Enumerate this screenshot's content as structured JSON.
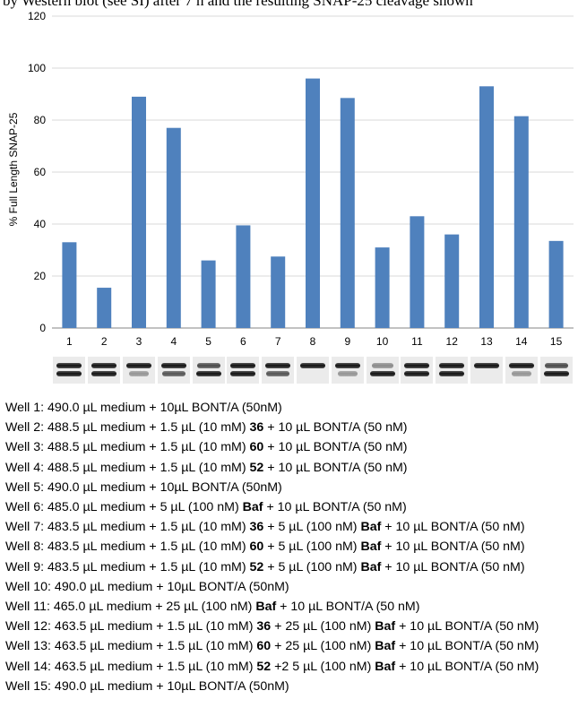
{
  "header_text": "by Western blot (see SI) after 7 h and the resulting SNAP-25 cleavage shown",
  "chart_data": {
    "type": "bar",
    "title": "",
    "xlabel": "",
    "ylabel": "% Full Length SNAP-25",
    "ylim": [
      0,
      120
    ],
    "yticks": [
      0,
      20,
      40,
      60,
      80,
      100,
      120
    ],
    "grid": true,
    "legend": "none",
    "bar_color": "#4f81bd",
    "categories": [
      "1",
      "2",
      "3",
      "4",
      "5",
      "6",
      "7",
      "8",
      "9",
      "10",
      "11",
      "12",
      "13",
      "14",
      "15"
    ],
    "values": [
      33,
      15.5,
      89,
      77,
      26,
      39.5,
      27.5,
      96,
      88.5,
      31,
      43,
      36,
      93,
      81.5,
      33.5
    ]
  },
  "blots": [
    {
      "well": "1",
      "bands": [
        "upper-strong",
        "lower-strong"
      ]
    },
    {
      "well": "2",
      "bands": [
        "upper-strong",
        "lower-strong"
      ]
    },
    {
      "well": "3",
      "bands": [
        "upper-strong",
        "lower-faint"
      ]
    },
    {
      "well": "4",
      "bands": [
        "upper-strong",
        "lower-medium"
      ]
    },
    {
      "well": "5",
      "bands": [
        "upper-medium",
        "lower-strong"
      ]
    },
    {
      "well": "6",
      "bands": [
        "upper-strong",
        "lower-strong"
      ]
    },
    {
      "well": "7",
      "bands": [
        "upper-strong",
        "lower-medium"
      ]
    },
    {
      "well": "8",
      "bands": [
        "upper-strong"
      ]
    },
    {
      "well": "9",
      "bands": [
        "upper-strong",
        "lower-faint"
      ]
    },
    {
      "well": "10",
      "bands": [
        "upper-faint",
        "lower-strong"
      ]
    },
    {
      "well": "11",
      "bands": [
        "upper-strong",
        "lower-strong"
      ]
    },
    {
      "well": "12",
      "bands": [
        "upper-strong",
        "lower-strong"
      ]
    },
    {
      "well": "13",
      "bands": [
        "upper-strong"
      ]
    },
    {
      "well": "14",
      "bands": [
        "upper-strong",
        "lower-faint"
      ]
    },
    {
      "well": "15",
      "bands": [
        "upper-medium",
        "lower-strong"
      ]
    }
  ],
  "wells": [
    {
      "parts": [
        {
          "t": "Well 1: 490.0 µL medium + 10µL BONT/A (50nM)",
          "b": false
        }
      ]
    },
    {
      "parts": [
        {
          "t": "Well 2: 488.5 µL medium + 1.5 µL (10 mM) ",
          "b": false
        },
        {
          "t": "36",
          "b": true
        },
        {
          "t": " + 10 µL BONT/A (50 nM)",
          "b": false
        }
      ]
    },
    {
      "parts": [
        {
          "t": "Well 3: 488.5 µL medium + 1.5 µL (10 mM) ",
          "b": false
        },
        {
          "t": "60",
          "b": true
        },
        {
          "t": " + 10 µL BONT/A (50 nM)",
          "b": false
        }
      ]
    },
    {
      "parts": [
        {
          "t": "Well 4: 488.5 µL medium + 1.5 µL (10 mM) ",
          "b": false
        },
        {
          "t": "52",
          "b": true
        },
        {
          "t": " + 10 µL BONT/A (50 nM)",
          "b": false
        }
      ]
    },
    {
      "parts": [
        {
          "t": "Well 5: 490.0 µL medium + 10µL BONT/A (50nM)",
          "b": false
        }
      ]
    },
    {
      "parts": [
        {
          "t": "Well 6: 485.0 µL medium + 5 µL (100 nM) ",
          "b": false
        },
        {
          "t": "Baf",
          "b": true
        },
        {
          "t": " + 10 µL BONT/A (50 nM)",
          "b": false
        }
      ]
    },
    {
      "parts": [
        {
          "t": "Well 7: 483.5 µL medium + 1.5 µL (10 mM) ",
          "b": false
        },
        {
          "t": "36",
          "b": true
        },
        {
          "t": " + 5 µL (100 nM) ",
          "b": false
        },
        {
          "t": "Baf",
          "b": true
        },
        {
          "t": " + 10 µL BONT/A (50 nM)",
          "b": false
        }
      ]
    },
    {
      "parts": [
        {
          "t": "Well 8: 483.5 µL medium + 1.5 µL (10 mM) ",
          "b": false
        },
        {
          "t": "60",
          "b": true
        },
        {
          "t": " + 5 µL (100 nM) ",
          "b": false
        },
        {
          "t": "Baf",
          "b": true
        },
        {
          "t": " + 10 µL BONT/A (50 nM)",
          "b": false
        }
      ]
    },
    {
      "parts": [
        {
          "t": "Well 9: 483.5 µL medium + 1.5 µL (10 mM) ",
          "b": false
        },
        {
          "t": "52",
          "b": true
        },
        {
          "t": " + 5 µL (100 nM) ",
          "b": false
        },
        {
          "t": "Baf",
          "b": true
        },
        {
          "t": " + 10 µL BONT/A (50 nM)",
          "b": false
        }
      ]
    },
    {
      "parts": [
        {
          "t": "Well 10: 490.0 µL medium + 10µL BONT/A (50nM)",
          "b": false
        }
      ]
    },
    {
      "parts": [
        {
          "t": "Well 11: 465.0 µL medium + 25 µL (100 nM) ",
          "b": false
        },
        {
          "t": "Baf",
          "b": true
        },
        {
          "t": " + 10 µL BONT/A (50 nM)",
          "b": false
        }
      ]
    },
    {
      "parts": [
        {
          "t": "Well 12: 463.5 µL medium + 1.5 µL (10 mM) ",
          "b": false
        },
        {
          "t": "36",
          "b": true
        },
        {
          "t": " + 25 µL (100 nM) ",
          "b": false
        },
        {
          "t": "Baf",
          "b": true
        },
        {
          "t": " + 10 µL BONT/A (50 nM)",
          "b": false
        }
      ]
    },
    {
      "parts": [
        {
          "t": "Well 13: 463.5 µL medium + 1.5 µL (10 mM) ",
          "b": false
        },
        {
          "t": "60",
          "b": true
        },
        {
          "t": " + 25 µL (100 nM) ",
          "b": false
        },
        {
          "t": "Baf",
          "b": true
        },
        {
          "t": " + 10 µL BONT/A (50 nM)",
          "b": false
        }
      ]
    },
    {
      "parts": [
        {
          "t": "Well 14: 463.5 µL medium + 1.5 µL (10 mM) ",
          "b": false
        },
        {
          "t": "52",
          "b": true
        },
        {
          "t": " +2 5 µL (100 nM) ",
          "b": false
        },
        {
          "t": "Baf",
          "b": true
        },
        {
          "t": " + 10 µL BONT/A (50 nM)",
          "b": false
        }
      ]
    },
    {
      "parts": [
        {
          "t": "Well 15: 490.0 µL medium + 10µL BONT/A (50nM)",
          "b": false
        }
      ]
    }
  ]
}
